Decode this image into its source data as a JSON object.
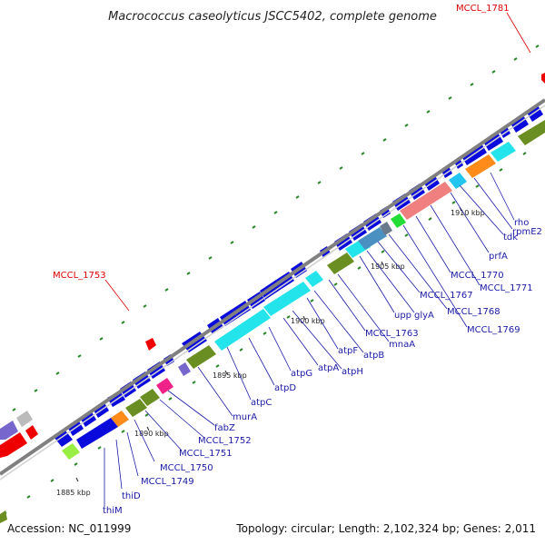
{
  "title": "Macrococcus caseolyticus JSCC5402, complete genome",
  "footer": {
    "accession": "Accession: NC_011999",
    "summary": "Topology: circular; Length: 2,102,324 bp; Genes: 2,011"
  },
  "colors": {
    "forward_gene": "#0a0adc",
    "cds_cyan": "#22e4ea",
    "cds_olive": "#6b8e23",
    "cds_orange": "#ff8c1a",
    "cds_pink": "#f08080",
    "cds_magenta": "#ee2288",
    "cds_green": "#22dd33",
    "cds_light_green": "#99ee44",
    "cds_purple": "#7766cc",
    "cds_red": "#ee0000",
    "cds_grey": "#bbbbbb",
    "cds_steel": "#4a90c0",
    "backbone": "#808080",
    "tick": "#2b8a2b",
    "label_blue": "#1a1aa8",
    "label_red": "#dd0000"
  },
  "ticks": [
    "1885 kbp",
    "1890 kbp",
    "1895 kbp",
    "1900 kbp",
    "1905 kbp",
    "1910 kbp"
  ],
  "gene_labels": [
    {
      "text": "thiM",
      "color": "blue"
    },
    {
      "text": "thiD",
      "color": "blue"
    },
    {
      "text": "MCCL_1749",
      "color": "blue"
    },
    {
      "text": "MCCL_1750",
      "color": "blue"
    },
    {
      "text": "MCCL_1751",
      "color": "blue"
    },
    {
      "text": "MCCL_1752",
      "color": "blue"
    },
    {
      "text": "fabZ",
      "color": "blue"
    },
    {
      "text": "murA",
      "color": "blue"
    },
    {
      "text": "atpC",
      "color": "blue"
    },
    {
      "text": "atpD",
      "color": "blue"
    },
    {
      "text": "atpG",
      "color": "blue"
    },
    {
      "text": "atpA",
      "color": "blue"
    },
    {
      "text": "atpH",
      "color": "blue"
    },
    {
      "text": "atpF",
      "color": "blue"
    },
    {
      "text": "atpB",
      "color": "blue"
    },
    {
      "text": "mnaA",
      "color": "blue"
    },
    {
      "text": "MCCL_1763",
      "color": "blue"
    },
    {
      "text": "upp",
      "color": "blue"
    },
    {
      "text": "glyA",
      "color": "blue"
    },
    {
      "text": "MCCL_1767",
      "color": "blue"
    },
    {
      "text": "MCCL_1768",
      "color": "blue"
    },
    {
      "text": "MCCL_1769",
      "color": "blue"
    },
    {
      "text": "MCCL_1770",
      "color": "blue"
    },
    {
      "text": "MCCL_1771",
      "color": "blue"
    },
    {
      "text": "prfA",
      "color": "blue"
    },
    {
      "text": "tdk",
      "color": "blue"
    },
    {
      "text": "rpmE2",
      "color": "blue"
    },
    {
      "text": "rho",
      "color": "blue"
    },
    {
      "text": "MCCL_1753",
      "color": "red"
    },
    {
      "text": "MCCL_1781",
      "color": "red"
    }
  ]
}
